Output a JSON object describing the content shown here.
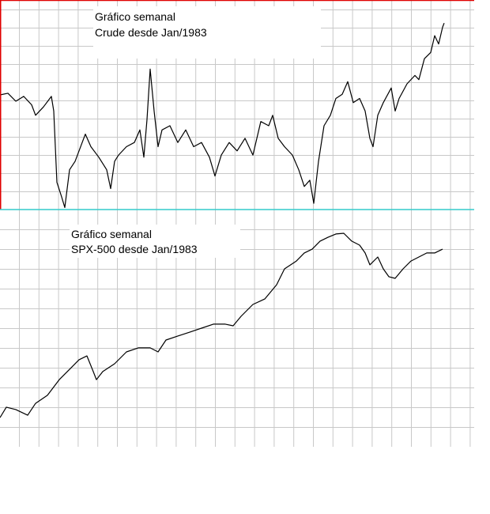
{
  "chart_data": [
    {
      "type": "line",
      "title": "Gráfico semanal",
      "subtitle": "Crude desde Jan/1983",
      "color": "#000000",
      "grid": true,
      "xlim": [
        0,
        600
      ],
      "ylim": [
        0,
        100
      ],
      "x": [
        0,
        10,
        20,
        30,
        40,
        45,
        55,
        65,
        68,
        72,
        78,
        82,
        88,
        95,
        100,
        108,
        115,
        125,
        135,
        140,
        145,
        150,
        160,
        170,
        177,
        182,
        186,
        190,
        195,
        200,
        205,
        215,
        225,
        235,
        245,
        255,
        265,
        272,
        280,
        290,
        300,
        310,
        320,
        330,
        340,
        345,
        352,
        360,
        370,
        378,
        385,
        392,
        397,
        403,
        410,
        418,
        425,
        433,
        440,
        447,
        455,
        462,
        468,
        472,
        478,
        485,
        495,
        500,
        505,
        515,
        525,
        530,
        537,
        545,
        550,
        555,
        560,
        562
      ],
      "values": [
        54.7,
        55.5,
        51.7,
        54,
        50,
        45,
        49,
        54,
        47,
        13,
        6,
        1,
        19,
        23,
        28,
        36,
        30,
        25,
        19,
        10,
        23,
        26,
        30,
        32,
        38,
        25,
        43,
        67,
        47,
        30,
        38,
        40,
        32,
        38,
        30,
        32,
        25,
        16,
        26,
        32,
        28,
        34,
        26,
        42,
        40,
        45,
        34,
        30,
        26,
        19,
        11,
        14,
        3,
        23,
        40,
        45,
        53,
        55,
        61,
        51,
        53,
        47,
        34,
        30,
        45,
        51,
        58,
        47,
        53,
        60,
        64,
        62,
        72,
        75,
        83,
        79,
        87,
        89
      ]
    },
    {
      "type": "line",
      "title": "Gráfico semanal",
      "subtitle": "SPX-500 desde Jan/1983",
      "color": "#000000",
      "grid": true,
      "xlim": [
        0,
        600
      ],
      "ylim": [
        0,
        100
      ],
      "x": [
        0,
        8,
        20,
        35,
        45,
        60,
        75,
        90,
        100,
        110,
        118,
        122,
        130,
        145,
        160,
        175,
        190,
        200,
        210,
        225,
        240,
        255,
        270,
        285,
        295,
        305,
        320,
        335,
        350,
        360,
        375,
        385,
        395,
        405,
        415,
        425,
        435,
        445,
        455,
        462,
        468,
        478,
        485,
        492,
        500,
        510,
        520,
        530,
        540,
        550,
        560
      ],
      "values": [
        12.3,
        16.7,
        15.7,
        13.3,
        18.3,
        21.7,
        28.3,
        33.3,
        36.7,
        38.3,
        31.7,
        28.3,
        31.7,
        35,
        40,
        41.7,
        41.7,
        40,
        45,
        46.7,
        48.3,
        50,
        51.7,
        51.7,
        51,
        55,
        60,
        62.3,
        68.3,
        75,
        78.3,
        81.7,
        83.3,
        86.7,
        88.3,
        89.7,
        90,
        86.7,
        85,
        81.7,
        76.7,
        80,
        75,
        71.7,
        71,
        75,
        78.3,
        80,
        81.7,
        81.7,
        83.3
      ]
    }
  ]
}
